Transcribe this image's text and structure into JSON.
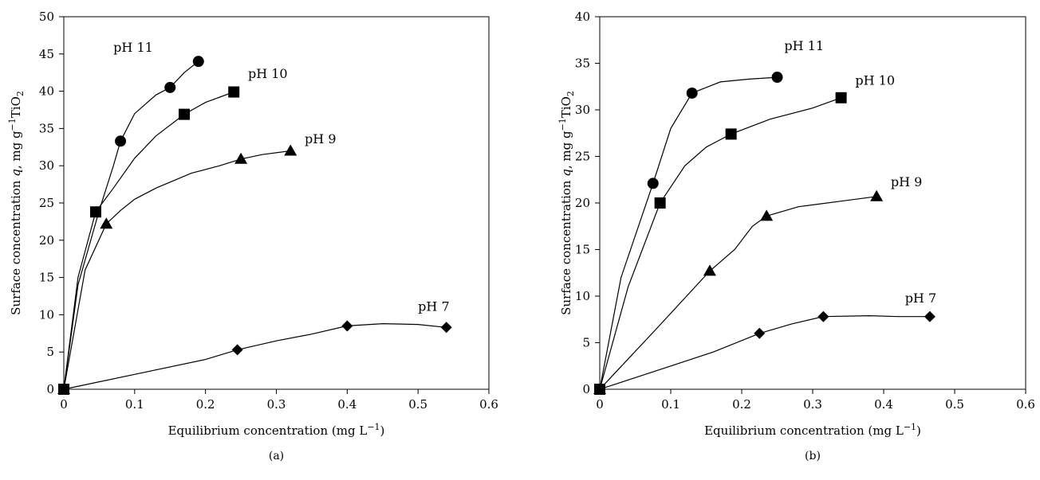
{
  "chart_data": [
    {
      "type": "line",
      "panel_label": "(a)",
      "xlabel": "Equilibrium concentration (mg L",
      "xlabel_sup": "−1",
      "xlabel_end": ")",
      "ylabel_parts": {
        "a": "Surface concentration ",
        "q": "q",
        "b": ", mg g",
        "sup": "−1",
        "c": "TiO",
        "sub": "2"
      },
      "xlim": [
        0,
        0.6
      ],
      "ylim": [
        0,
        50
      ],
      "xticks": [
        "0",
        "0.1",
        "0.2",
        "0.3",
        "0.4",
        "0.5",
        "0.6"
      ],
      "yticks": [
        "0",
        "5",
        "10",
        "15",
        "20",
        "25",
        "30",
        "35",
        "40",
        "45",
        "50"
      ],
      "grid": false,
      "series": [
        {
          "name": "pH 11",
          "marker": "circle",
          "points": [
            [
              0,
              0
            ],
            [
              0.08,
              33.3
            ],
            [
              0.15,
              40.5
            ],
            [
              0.19,
              44.0
            ]
          ],
          "curve": [
            [
              0,
              0
            ],
            [
              0.02,
              14
            ],
            [
              0.05,
              24
            ],
            [
              0.07,
              30
            ],
            [
              0.08,
              33.3
            ],
            [
              0.1,
              37
            ],
            [
              0.13,
              39.5
            ],
            [
              0.15,
              40.5
            ],
            [
              0.17,
              42.5
            ],
            [
              0.19,
              44.0
            ]
          ]
        },
        {
          "name": "pH 10",
          "marker": "square",
          "points": [
            [
              0,
              0
            ],
            [
              0.045,
              23.8
            ],
            [
              0.17,
              36.9
            ],
            [
              0.24,
              39.9
            ]
          ],
          "curve": [
            [
              0,
              0
            ],
            [
              0.02,
              15
            ],
            [
              0.045,
              23.8
            ],
            [
              0.07,
              27
            ],
            [
              0.1,
              31
            ],
            [
              0.13,
              34
            ],
            [
              0.17,
              36.9
            ],
            [
              0.2,
              38.5
            ],
            [
              0.24,
              39.9
            ]
          ]
        },
        {
          "name": "pH 9",
          "marker": "triangle",
          "points": [
            [
              0,
              0
            ],
            [
              0.06,
              22.2
            ],
            [
              0.25,
              30.9
            ],
            [
              0.32,
              32.0
            ]
          ],
          "curve": [
            [
              0,
              0
            ],
            [
              0.03,
              16
            ],
            [
              0.06,
              22.2
            ],
            [
              0.08,
              24
            ],
            [
              0.1,
              25.5
            ],
            [
              0.13,
              27
            ],
            [
              0.18,
              29
            ],
            [
              0.22,
              30
            ],
            [
              0.25,
              30.9
            ],
            [
              0.28,
              31.5
            ],
            [
              0.32,
              32.0
            ]
          ]
        },
        {
          "name": "pH 7",
          "marker": "diamond",
          "points": [
            [
              0,
              0
            ],
            [
              0.245,
              5.3
            ],
            [
              0.4,
              8.5
            ],
            [
              0.54,
              8.3
            ]
          ],
          "curve": [
            [
              0,
              0
            ],
            [
              0.1,
              2
            ],
            [
              0.2,
              4
            ],
            [
              0.245,
              5.3
            ],
            [
              0.3,
              6.5
            ],
            [
              0.35,
              7.4
            ],
            [
              0.4,
              8.5
            ],
            [
              0.45,
              8.8
            ],
            [
              0.5,
              8.7
            ],
            [
              0.54,
              8.3
            ]
          ]
        }
      ],
      "labels": [
        {
          "text": "pH 11",
          "x": 0.07,
          "y": 45.3
        },
        {
          "text": "pH 10",
          "x": 0.26,
          "y": 41.8
        },
        {
          "text": "pH 9",
          "x": 0.34,
          "y": 33.0
        },
        {
          "text": "pH 7",
          "x": 0.5,
          "y": 10.5
        }
      ]
    },
    {
      "type": "line",
      "panel_label": "(b)",
      "xlabel": "Equilibrium concentration (mg L",
      "xlabel_sup": "−1",
      "xlabel_end": ")",
      "ylabel_parts": {
        "a": "Surface concentration ",
        "q": "q",
        "b": ", mg g",
        "sup": "−1",
        "c": "TiO",
        "sub": "2"
      },
      "xlim": [
        0,
        0.6
      ],
      "ylim": [
        0,
        40
      ],
      "xticks": [
        "0",
        "0.1",
        "0.2",
        "0.3",
        "0.4",
        "0.5",
        "0.6"
      ],
      "yticks": [
        "0",
        "5",
        "10",
        "15",
        "20",
        "25",
        "30",
        "35",
        "40"
      ],
      "grid": false,
      "series": [
        {
          "name": "pH 11",
          "marker": "circle",
          "points": [
            [
              0,
              0
            ],
            [
              0.075,
              22.1
            ],
            [
              0.13,
              31.8
            ],
            [
              0.25,
              33.5
            ]
          ],
          "curve": [
            [
              0,
              0
            ],
            [
              0.03,
              12
            ],
            [
              0.075,
              22.1
            ],
            [
              0.1,
              28
            ],
            [
              0.13,
              31.8
            ],
            [
              0.17,
              33
            ],
            [
              0.21,
              33.3
            ],
            [
              0.25,
              33.5
            ]
          ]
        },
        {
          "name": "pH 10",
          "marker": "square",
          "points": [
            [
              0,
              0
            ],
            [
              0.085,
              20.0
            ],
            [
              0.185,
              27.4
            ],
            [
              0.34,
              31.3
            ]
          ],
          "curve": [
            [
              0,
              0
            ],
            [
              0.04,
              11
            ],
            [
              0.085,
              20.0
            ],
            [
              0.12,
              24
            ],
            [
              0.15,
              26
            ],
            [
              0.185,
              27.4
            ],
            [
              0.24,
              29
            ],
            [
              0.3,
              30.2
            ],
            [
              0.34,
              31.3
            ]
          ]
        },
        {
          "name": "pH 9",
          "marker": "triangle",
          "points": [
            [
              0,
              0
            ],
            [
              0.155,
              12.7
            ],
            [
              0.235,
              18.6
            ],
            [
              0.39,
              20.7
            ]
          ],
          "curve": [
            [
              0,
              0
            ],
            [
              0.08,
              6.5
            ],
            [
              0.155,
              12.7
            ],
            [
              0.19,
              15
            ],
            [
              0.215,
              17.5
            ],
            [
              0.235,
              18.6
            ],
            [
              0.28,
              19.6
            ],
            [
              0.34,
              20.2
            ],
            [
              0.39,
              20.7
            ]
          ]
        },
        {
          "name": "pH 7",
          "marker": "diamond",
          "points": [
            [
              0,
              0
            ],
            [
              0.225,
              6.0
            ],
            [
              0.315,
              7.8
            ],
            [
              0.465,
              7.8
            ]
          ],
          "curve": [
            [
              0,
              0
            ],
            [
              0.1,
              2.5
            ],
            [
              0.16,
              4
            ],
            [
              0.225,
              6.0
            ],
            [
              0.27,
              7
            ],
            [
              0.315,
              7.8
            ],
            [
              0.38,
              7.9
            ],
            [
              0.42,
              7.8
            ],
            [
              0.465,
              7.8
            ]
          ]
        }
      ],
      "labels": [
        {
          "text": "pH 11",
          "x": 0.26,
          "y": 36.4
        },
        {
          "text": "pH 10",
          "x": 0.36,
          "y": 32.7
        },
        {
          "text": "pH 9",
          "x": 0.41,
          "y": 21.8
        },
        {
          "text": "pH 7",
          "x": 0.43,
          "y": 9.3
        }
      ]
    }
  ]
}
